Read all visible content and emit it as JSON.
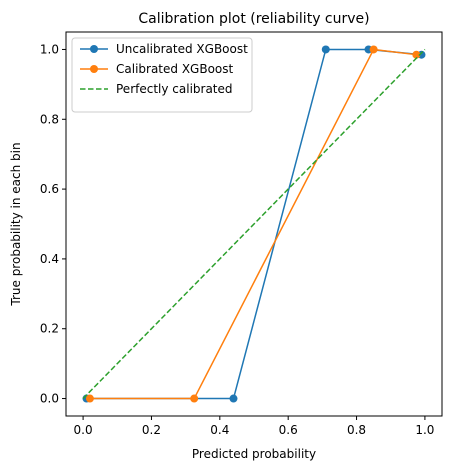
{
  "chart_data": {
    "type": "line",
    "title": "Calibration plot (reliability curve)",
    "xlabel": "Predicted probability",
    "ylabel": "True probability in each bin",
    "xlim": [
      -0.05,
      1.05
    ],
    "ylim": [
      -0.05,
      1.05
    ],
    "xticks": [
      0.0,
      0.2,
      0.4,
      0.6,
      0.8,
      1.0
    ],
    "xtick_labels": [
      "0.0",
      "0.2",
      "0.4",
      "0.6",
      "0.8",
      "1.0"
    ],
    "yticks": [
      0.0,
      0.2,
      0.4,
      0.6,
      0.8,
      1.0
    ],
    "ytick_labels": [
      "0.0",
      "0.2",
      "0.4",
      "0.6",
      "0.8",
      "1.0"
    ],
    "grid": false,
    "legend_position": "upper-left",
    "series": [
      {
        "name": "Uncalibrated XGBoost",
        "color": "#1f77b4",
        "style": "solid",
        "marker": "circle",
        "x": [
          0.01,
          0.44,
          0.71,
          0.835,
          0.99
        ],
        "y": [
          0.0,
          0.0,
          1.0,
          1.0,
          0.985
        ]
      },
      {
        "name": "Calibrated XGBoost",
        "color": "#ff7f0e",
        "style": "solid",
        "marker": "circle",
        "x": [
          0.02,
          0.325,
          0.85,
          0.975
        ],
        "y": [
          0.0,
          0.0,
          1.0,
          0.985
        ]
      },
      {
        "name": "Perfectly calibrated",
        "color": "#2ca02c",
        "style": "dashed",
        "marker": "none",
        "x": [
          0.0,
          1.0
        ],
        "y": [
          0.0,
          1.0
        ]
      }
    ]
  }
}
